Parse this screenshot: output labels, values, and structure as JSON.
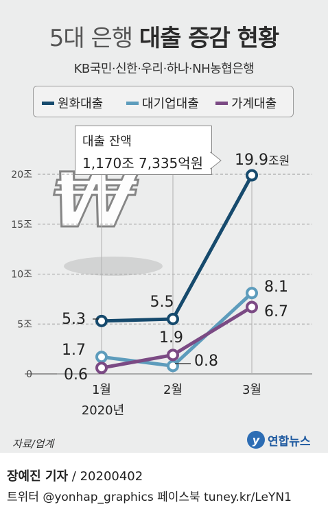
{
  "title_light": "5대 은행",
  "title_bold": "대출 증감 현황",
  "subtitle": "KB국민·신한·우리·하나·NH농협은행",
  "callout": {
    "line1": "대출 잔액",
    "line2": "1,170조 7,335억원"
  },
  "source": "자료/업계",
  "logo_text": "연합뉴스",
  "byline_name": "장예진 기자",
  "byline_rest": " / 20200402",
  "twitter": "트위터 @yonhap_graphics  페이스북 tuney.kr/LeYN1",
  "colors": {
    "won": "#164a6d",
    "corp": "#5d9cbc",
    "house": "#7b4a84"
  },
  "chart_data": {
    "type": "line",
    "categories": [
      "1월",
      "2월",
      "3월"
    ],
    "x_sublabel": "2020년",
    "yticks": [
      "0",
      "5조",
      "10조",
      "15조",
      "20조"
    ],
    "ylim": [
      0,
      20
    ],
    "series": [
      {
        "name": "원화대출",
        "values": [
          5.3,
          5.5,
          19.9
        ],
        "labels": [
          "5.3",
          "5.5",
          "19.9"
        ],
        "last_unit": "조원"
      },
      {
        "name": "대기업대출",
        "values": [
          1.7,
          0.8,
          8.1
        ],
        "labels": [
          "1.7",
          "0.8",
          "8.1"
        ]
      },
      {
        "name": "가계대출",
        "values": [
          0.6,
          1.9,
          6.7
        ],
        "labels": [
          "0.6",
          "1.9",
          "6.7"
        ]
      }
    ]
  }
}
